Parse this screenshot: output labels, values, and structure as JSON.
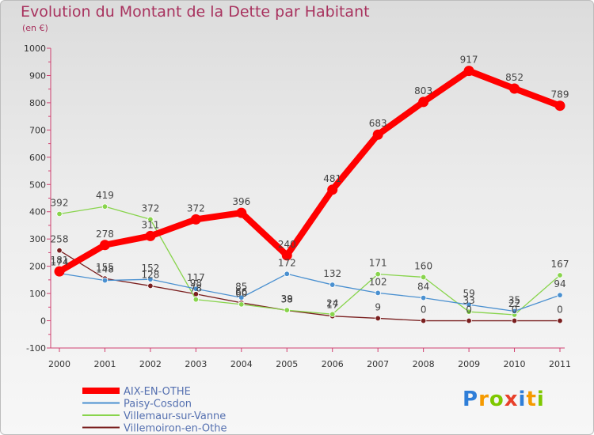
{
  "header": {
    "title": "Evolution du Montant de la Dette par Habitant",
    "subtitle": "(en €)"
  },
  "logo": {
    "letters": [
      "P",
      "r",
      "o",
      "x",
      "i",
      "t",
      "i"
    ],
    "colors": [
      "#2f7ed8",
      "#f59a00",
      "#7ec800",
      "#e8402a",
      "#2f7ed8",
      "#f59a00",
      "#7ec800"
    ]
  },
  "chart_data": {
    "type": "line",
    "x": [
      "2000",
      "2001",
      "2002",
      "2003",
      "2004",
      "2005",
      "2006",
      "2007",
      "2008",
      "2009",
      "2010",
      "2011"
    ],
    "ylim": [
      -100,
      1000
    ],
    "yticks": [
      -100,
      0,
      100,
      200,
      300,
      400,
      500,
      600,
      700,
      800,
      900,
      1000
    ],
    "grid": false,
    "legend_position": "bottom-left",
    "series": [
      {
        "name": "AIX-EN-OTHE",
        "color": "#ff0000",
        "values": [
          181,
          278,
          311,
          372,
          396,
          240,
          481,
          683,
          803,
          917,
          852,
          789
        ]
      },
      {
        "name": "Paisy-Cosdon",
        "color": "#4a90d0",
        "values": [
          174,
          148,
          152,
          117,
          85,
          172,
          132,
          102,
          84,
          59,
          35,
          94
        ]
      },
      {
        "name": "Villemaur-sur-Vanne",
        "color": "#88d44c",
        "values": [
          392,
          419,
          372,
          78,
          60,
          39,
          24,
          171,
          160,
          33,
          22,
          167
        ]
      },
      {
        "name": "Villemoiron-en-Othe",
        "color": "#7a1f1f",
        "values": [
          258,
          155,
          128,
          98,
          66,
          38,
          17,
          9,
          0,
          0,
          0,
          0
        ]
      }
    ]
  }
}
